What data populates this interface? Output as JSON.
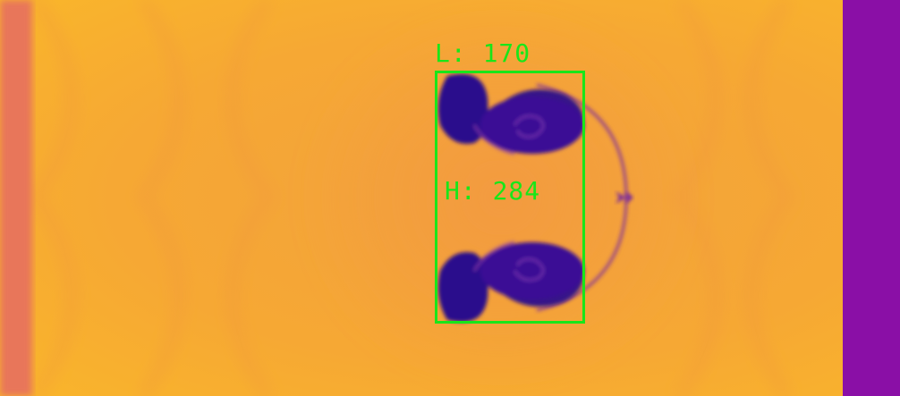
{
  "colors": {
    "background": "#f4a03a",
    "accent": "#19e619",
    "vortex": "#2a0a8c",
    "edge_band": "#8a0fa6",
    "left_band": "#e8765a"
  },
  "annotation": {
    "length_label": "L: 170",
    "height_label": "H: 284"
  }
}
